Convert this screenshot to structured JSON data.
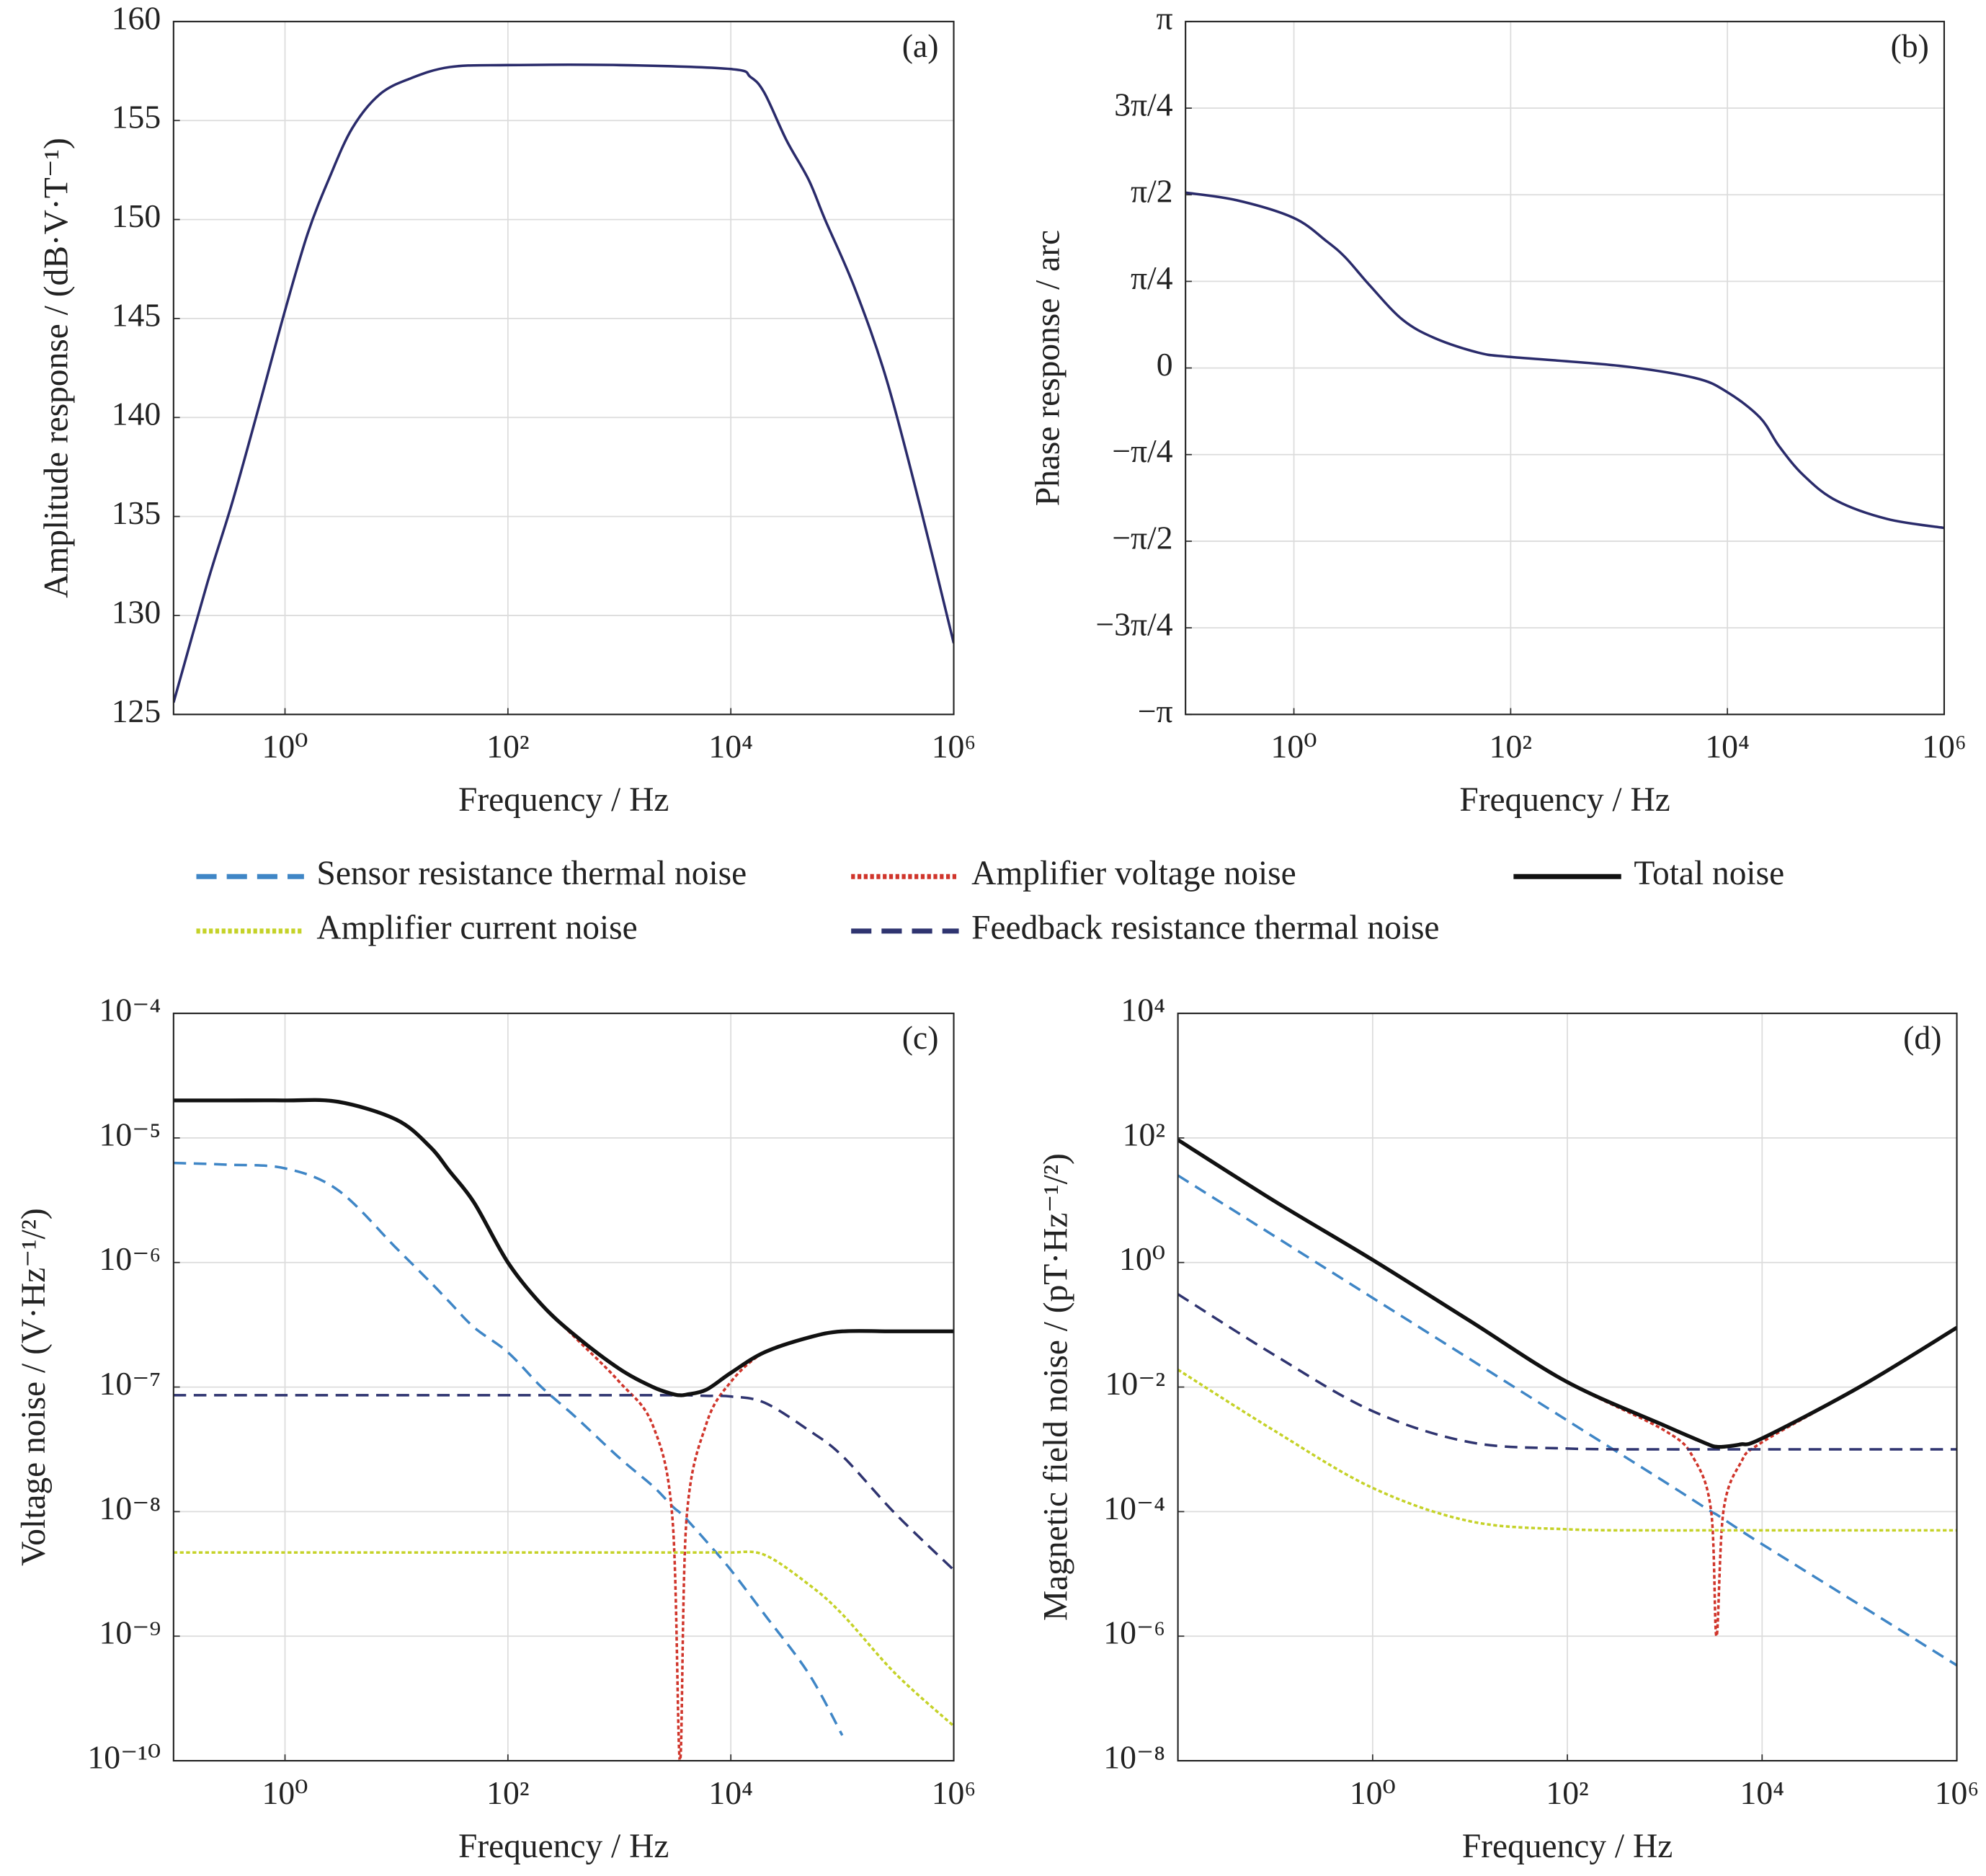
{
  "chart_data": [
    {
      "type": "line",
      "panel_label": "(a)",
      "x_label": "Frequency / Hz",
      "y_label": "Amplitude response / (dB·V·T⁻¹)",
      "log_x": true,
      "grid": true,
      "xlim": [
        0.1,
        1000000
      ],
      "xticks": [
        {
          "value": 1,
          "label": "10⁰"
        },
        {
          "value": 100,
          "label": "10²"
        },
        {
          "value": 10000,
          "label": "10⁴"
        },
        {
          "value": 1000000,
          "label": "10⁶"
        }
      ],
      "ylim": [
        125,
        160
      ],
      "yticks": [
        125,
        130,
        135,
        140,
        145,
        150,
        155,
        160
      ],
      "x": [
        0.1,
        0.2,
        0.34,
        0.6,
        1,
        1.6,
        2.5,
        4,
        7,
        13,
        30,
        100,
        1000,
        10000,
        15000,
        20000,
        31600,
        50000,
        70000,
        130000,
        250000,
        500000,
        1000000
      ],
      "series": [
        {
          "color": "#2a2b6b",
          "dash": "solid",
          "values": [
            125.6,
            131.6,
            135.8,
            140.8,
            145.4,
            149.3,
            152.1,
            154.6,
            156.3,
            157.1,
            157.7,
            157.8,
            157.8,
            157.6,
            157.2,
            156.4,
            154,
            152,
            150,
            146.5,
            141.9,
            135.5,
            128.6
          ]
        }
      ]
    },
    {
      "type": "line",
      "panel_label": "(b)",
      "x_label": "Frequency / Hz",
      "y_label": "Phase response / arc",
      "log_x": true,
      "grid": true,
      "xlim": [
        0.1,
        1000000
      ],
      "xticks": [
        {
          "value": 1,
          "label": "10⁰"
        },
        {
          "value": 100,
          "label": "10²"
        },
        {
          "value": 10000,
          "label": "10⁴"
        },
        {
          "value": 1000000,
          "label": "10⁶"
        }
      ],
      "ylim": [
        -3.14159,
        3.14159
      ],
      "yticks": [
        {
          "value": -3.14159,
          "label": "−π"
        },
        {
          "value": -2.35619,
          "label": "−3π/4"
        },
        {
          "value": -1.5708,
          "label": "−π/2"
        },
        {
          "value": -0.7854,
          "label": "−π/4"
        },
        0,
        {
          "value": 0.7854,
          "label": "π/4"
        },
        {
          "value": 1.5708,
          "label": "π/2"
        },
        {
          "value": 2.35619,
          "label": "3π/4"
        },
        {
          "value": 3.14159,
          "label": "π"
        }
      ],
      "x": [
        0.1,
        0.3,
        1,
        2,
        3,
        5,
        10,
        20,
        50,
        100,
        1000,
        5000,
        10000,
        20000,
        30000,
        50000,
        100000,
        300000,
        1000000
      ],
      "series": [
        {
          "color": "#2a2b6b",
          "dash": "solid",
          "values": [
            1.59,
            1.52,
            1.36,
            1.15,
            1.0,
            0.75,
            0.44,
            0.27,
            0.14,
            0.1,
            0.02,
            -0.09,
            -0.22,
            -0.45,
            -0.71,
            -0.97,
            -1.2,
            -1.37,
            -1.45
          ]
        }
      ]
    },
    {
      "type": "line",
      "panel_label": "(c)",
      "x_label": "Frequency / Hz",
      "y_label": "Voltage noise / (V·Hz⁻¹/²)",
      "log_x": true,
      "log_y": true,
      "grid": true,
      "xlim": [
        0.1,
        1000000
      ],
      "xticks": [
        {
          "value": 1,
          "label": "10⁰"
        },
        {
          "value": 100,
          "label": "10²"
        },
        {
          "value": 10000,
          "label": "10⁴"
        },
        {
          "value": 1000000,
          "label": "10⁶"
        }
      ],
      "ylim": [
        1e-10,
        0.0001
      ],
      "yticks": [
        {
          "value": 1e-10,
          "label": "10⁻¹⁰"
        },
        {
          "value": 1e-09,
          "label": "10⁻⁹"
        },
        {
          "value": 1e-08,
          "label": "10⁻⁸"
        },
        {
          "value": 1e-07,
          "label": "10⁻⁷"
        },
        {
          "value": 1e-06,
          "label": "10⁻⁶"
        },
        {
          "value": 1e-05,
          "label": "10⁻⁵"
        },
        {
          "value": 0.0001,
          "label": "10⁻⁴"
        }
      ],
      "x": [
        0.1,
        0.3,
        1,
        3,
        10,
        20,
        30,
        50,
        100,
        200,
        400,
        1000,
        2000,
        3000,
        3500,
        4000,
        6000,
        10000,
        20000,
        50000,
        100000,
        300000,
        1000000
      ],
      "series": [
        {
          "name": "Sensor resistance thermal noise",
          "color": "#3f86c6",
          "dash": "dashed",
          "values": [
            6.3e-06,
            6.1e-06,
            5.7e-06,
            3.8e-06,
            1.3e-06,
            7e-07,
            4.8e-07,
            3e-07,
            1.9e-07,
            1e-07,
            5.8e-08,
            2.7e-08,
            1.6e-08,
            1.1e-08,
            9.8e-09,
            8.7e-09,
            5.8e-09,
            3.4e-09,
            1.5e-09,
            5e-10,
            1.6e-10,
            null,
            null
          ]
        },
        {
          "name": "Amplifier voltage noise",
          "color": "#d0352b",
          "dash": "dotted",
          "values": [
            2e-05,
            2e-05,
            2e-05,
            1.95e-05,
            1.4e-05,
            8.5e-06,
            5.4e-06,
            3e-06,
            1e-06,
            4.6e-07,
            2.5e-07,
            1.1e-07,
            4.9e-08,
            8.6e-09,
            1e-10,
            8.6e-09,
            5e-08,
            1.1e-07,
            1.9e-07,
            2.5e-07,
            2.8e-07,
            2.8e-07,
            2.8e-07
          ]
        },
        {
          "name": "Total noise",
          "color": "#111111",
          "dash": "solid",
          "values": [
            2e-05,
            2e-05,
            2e-05,
            1.95e-05,
            1.4e-05,
            8.5e-06,
            5.4e-06,
            3e-06,
            1e-06,
            4.6e-07,
            2.6e-07,
            1.4e-07,
            1e-07,
            8.8e-08,
            8.6e-08,
            8.7e-08,
            9.5e-08,
            1.3e-07,
            1.9e-07,
            2.5e-07,
            2.8e-07,
            2.8e-07,
            2.8e-07
          ]
        },
        {
          "name": "Amplifier current noise",
          "color": "#c5d228",
          "dash": "dotted",
          "values": [
            4.7e-09,
            4.7e-09,
            4.7e-09,
            4.7e-09,
            4.7e-09,
            4.7e-09,
            4.7e-09,
            4.7e-09,
            4.7e-09,
            4.7e-09,
            4.7e-09,
            4.7e-09,
            4.7e-09,
            4.7e-09,
            4.7e-09,
            4.7e-09,
            4.7e-09,
            4.7e-09,
            4.5e-09,
            2.6e-09,
            1.5e-09,
            5e-10,
            1.9e-10
          ]
        },
        {
          "name": "Feedback resistance thermal noise",
          "color": "#2f3470",
          "dash": "dashed",
          "values": [
            8.6e-08,
            8.6e-08,
            8.6e-08,
            8.6e-08,
            8.6e-08,
            8.6e-08,
            8.6e-08,
            8.6e-08,
            8.6e-08,
            8.6e-08,
            8.6e-08,
            8.6e-08,
            8.6e-08,
            8.6e-08,
            8.6e-08,
            8.6e-08,
            8.5e-08,
            8.4e-08,
            7.5e-08,
            4.5e-08,
            2.8e-08,
            9.6e-09,
            3.4e-09
          ]
        }
      ]
    },
    {
      "type": "line",
      "panel_label": "(d)",
      "x_label": "Frequency / Hz",
      "y_label": "Magnetic field noise / (pT·Hz⁻¹/²)",
      "log_x": true,
      "log_y": true,
      "grid": true,
      "xlim": [
        0.01,
        1000000
      ],
      "xticks": [
        {
          "value": 1,
          "label": "10⁰"
        },
        {
          "value": 100,
          "label": "10²"
        },
        {
          "value": 10000,
          "label": "10⁴"
        },
        {
          "value": 1000000,
          "label": "10⁶"
        }
      ],
      "ylim": [
        1e-08,
        10000
      ],
      "yticks": [
        {
          "value": 1e-08,
          "label": "10⁻⁸"
        },
        {
          "value": 1e-06,
          "label": "10⁻⁶"
        },
        {
          "value": 0.0001,
          "label": "10⁻⁴"
        },
        {
          "value": 0.01,
          "label": "10⁻²"
        },
        {
          "value": 1,
          "label": "10⁰"
        },
        {
          "value": 100,
          "label": "10²"
        },
        {
          "value": 10000,
          "label": "10⁴"
        }
      ],
      "x": [
        0.01,
        0.1,
        1,
        10,
        100,
        1000,
        2000,
        3000,
        3400,
        4000,
        6000,
        10000,
        100000,
        1000000
      ],
      "series": [
        {
          "color": "#3f86c6",
          "dash": "dashed",
          "values": [
            25,
            2.6,
            0.27,
            0.028,
            0.0029,
            0.0003,
            0.00015,
            0.0001,
            9e-05,
            7.6e-05,
            5e-05,
            3e-05,
            3.2e-06,
            3.4e-07
          ]
        },
        {
          "color": "#d0352b",
          "dash": "dotted",
          "values": [
            93,
            9.5,
            1.1,
            0.115,
            0.012,
            0.002,
            0.0007,
            0.0001,
            1e-06,
            0.0001,
            0.0006,
            0.0013,
            0.01,
            0.09
          ]
        },
        {
          "color": "#111111",
          "dash": "solid",
          "values": [
            93,
            9.5,
            1.1,
            0.115,
            0.012,
            0.0024,
            0.0015,
            0.00115,
            0.0011,
            0.0011,
            0.0012,
            0.0015,
            0.01,
            0.09
          ]
        },
        {
          "color": "#c5d228",
          "dash": "dotted",
          "values": [
            0.019,
            0.00195,
            0.00024,
            7e-05,
            5.2e-05,
            5e-05,
            5e-05,
            5e-05,
            5e-05,
            5e-05,
            5e-05,
            5e-05,
            5e-05,
            5e-05
          ]
        },
        {
          "color": "#2f3470",
          "dash": "dashed",
          "values": [
            0.31,
            0.032,
            0.0041,
            0.0013,
            0.00103,
            0.001,
            0.001,
            0.001,
            0.001,
            0.001,
            0.001,
            0.001,
            0.001,
            0.001
          ]
        }
      ]
    }
  ]
}
